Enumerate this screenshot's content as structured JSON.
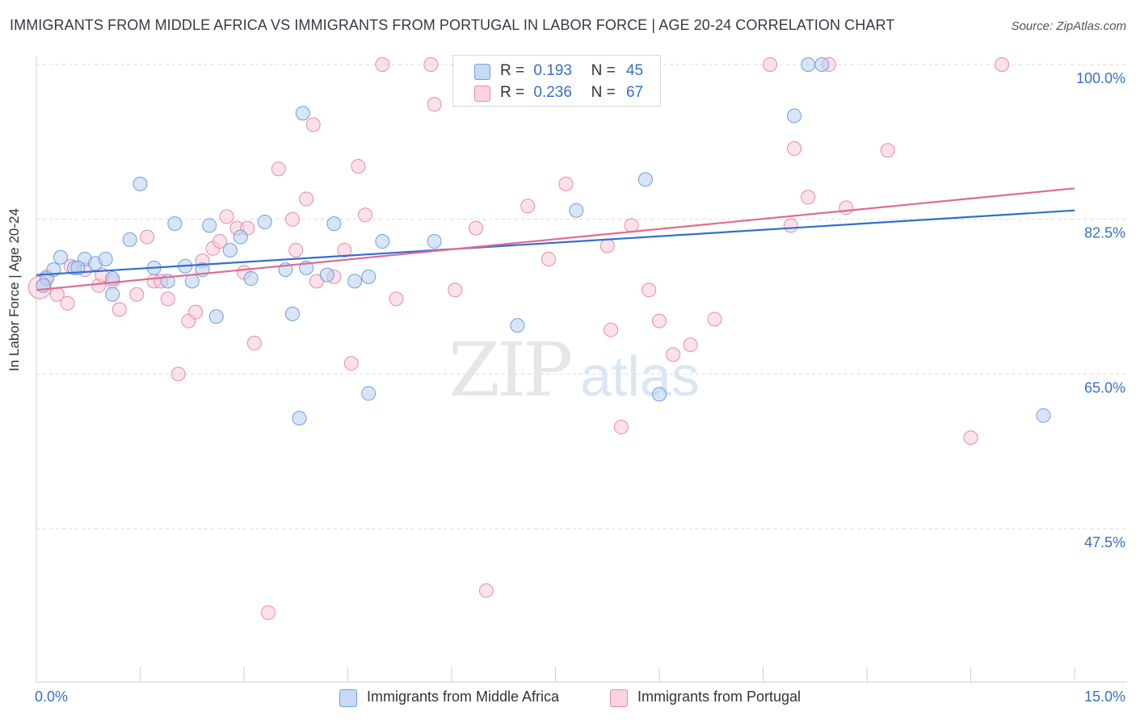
{
  "header": {
    "title": "IMMIGRANTS FROM MIDDLE AFRICA VS IMMIGRANTS FROM PORTUGAL IN LABOR FORCE | AGE 20-24 CORRELATION CHART",
    "source": "Source: ZipAtlas.com"
  },
  "legend": {
    "series1": {
      "r_label": "R =",
      "r_value": "0.193",
      "n_label": "N =",
      "n_value": "45"
    },
    "series2": {
      "r_label": "R =",
      "r_value": "0.236",
      "n_label": "N =",
      "n_value": "67"
    }
  },
  "colors": {
    "blue_fill": "#b8d0f0",
    "blue_stroke": "#6f9fdc",
    "blue_line": "#2f6fcf",
    "pink_fill": "#f8c8d8",
    "pink_stroke": "#e88aa8",
    "pink_line": "#e06a95",
    "axis_text": "#3a6fc4",
    "grid": "#d9d9d9"
  },
  "chart_data": {
    "type": "scatter",
    "title": "IMMIGRANTS FROM MIDDLE AFRICA VS IMMIGRANTS FROM PORTUGAL IN LABOR FORCE | AGE 20-24 CORRELATION CHART",
    "xlabel": "",
    "ylabel": "In Labor Force | Age 20-24",
    "xlim": [
      0,
      15
    ],
    "ylim": [
      32,
      102
    ],
    "x_tick_labels": [
      "0.0%",
      "15.0%"
    ],
    "y_ticks": [
      47.5,
      65.0,
      82.5,
      100.0
    ],
    "y_tick_labels": [
      "47.5%",
      "65.0%",
      "82.5%",
      "100.0%"
    ],
    "grid": true,
    "legend_position": "bottom",
    "watermark": {
      "zip": "ZIP",
      "atlas": "atlas"
    },
    "series": [
      {
        "name": "Immigrants from Middle Africa",
        "color": "#6f9fdc",
        "trend": {
          "x": [
            0,
            15
          ],
          "y": [
            76.2,
            83.5
          ]
        },
        "points": [
          [
            0.15,
            75.8
          ],
          [
            0.25,
            76.8
          ],
          [
            0.35,
            78.2
          ],
          [
            0.55,
            77.0
          ],
          [
            0.7,
            78.0
          ],
          [
            0.85,
            77.5
          ],
          [
            0.6,
            77.0
          ],
          [
            1.0,
            78.0
          ],
          [
            1.1,
            75.8
          ],
          [
            1.35,
            80.2
          ],
          [
            1.5,
            86.5
          ],
          [
            1.7,
            77.0
          ],
          [
            1.9,
            75.5
          ],
          [
            2.0,
            82.0
          ],
          [
            2.15,
            77.2
          ],
          [
            2.25,
            75.5
          ],
          [
            2.4,
            76.8
          ],
          [
            2.5,
            81.8
          ],
          [
            2.6,
            71.5
          ],
          [
            2.8,
            79.0
          ],
          [
            2.95,
            80.5
          ],
          [
            3.1,
            75.8
          ],
          [
            3.3,
            82.2
          ],
          [
            3.6,
            76.8
          ],
          [
            3.7,
            71.8
          ],
          [
            3.8,
            60.0
          ],
          [
            3.9,
            77.0
          ],
          [
            4.2,
            76.2
          ],
          [
            4.3,
            82.0
          ],
          [
            4.6,
            75.5
          ],
          [
            4.8,
            62.8
          ],
          [
            4.8,
            76.0
          ],
          [
            5.0,
            80.0
          ],
          [
            5.75,
            80.0
          ],
          [
            6.95,
            70.5
          ],
          [
            7.8,
            83.5
          ],
          [
            8.8,
            87.0
          ],
          [
            9.0,
            62.7
          ],
          [
            10.95,
            94.2
          ],
          [
            11.15,
            100.0
          ],
          [
            11.35,
            100.0
          ],
          [
            14.55,
            60.3
          ],
          [
            1.1,
            74.0
          ],
          [
            3.85,
            94.5
          ],
          [
            0.1,
            75.0
          ]
        ]
      },
      {
        "name": "Immigrants from Portugal",
        "color": "#e88aa8",
        "trend": {
          "x": [
            0,
            15
          ],
          "y": [
            74.5,
            86.0
          ]
        },
        "points": [
          [
            0.1,
            75.0
          ],
          [
            0.3,
            74.0
          ],
          [
            0.45,
            73.0
          ],
          [
            0.7,
            76.8
          ],
          [
            0.9,
            75.0
          ],
          [
            1.1,
            75.5
          ],
          [
            1.2,
            72.3
          ],
          [
            1.45,
            74.0
          ],
          [
            1.6,
            80.5
          ],
          [
            1.7,
            75.5
          ],
          [
            1.8,
            75.5
          ],
          [
            1.9,
            73.5
          ],
          [
            2.05,
            65.0
          ],
          [
            2.2,
            71.0
          ],
          [
            2.3,
            72.0
          ],
          [
            2.4,
            77.8
          ],
          [
            2.55,
            79.2
          ],
          [
            2.75,
            82.8
          ],
          [
            2.9,
            81.5
          ],
          [
            3.0,
            76.5
          ],
          [
            3.15,
            68.5
          ],
          [
            3.35,
            38.0
          ],
          [
            3.5,
            88.2
          ],
          [
            3.7,
            82.5
          ],
          [
            3.75,
            79.0
          ],
          [
            3.9,
            84.8
          ],
          [
            4.0,
            93.2
          ],
          [
            4.05,
            75.5
          ],
          [
            4.3,
            76.0
          ],
          [
            4.45,
            79.0
          ],
          [
            4.55,
            66.2
          ],
          [
            4.65,
            88.5
          ],
          [
            4.75,
            83.0
          ],
          [
            5.0,
            100.0
          ],
          [
            5.2,
            73.5
          ],
          [
            5.7,
            100.0
          ],
          [
            5.75,
            95.5
          ],
          [
            6.05,
            74.5
          ],
          [
            6.35,
            81.5
          ],
          [
            6.5,
            40.5
          ],
          [
            6.85,
            100.0
          ],
          [
            7.1,
            84.0
          ],
          [
            7.4,
            78.0
          ],
          [
            7.65,
            86.5
          ],
          [
            8.25,
            79.5
          ],
          [
            8.3,
            70.0
          ],
          [
            8.45,
            59.0
          ],
          [
            8.6,
            81.8
          ],
          [
            8.85,
            74.5
          ],
          [
            9.0,
            71.0
          ],
          [
            9.2,
            67.2
          ],
          [
            9.45,
            68.3
          ],
          [
            9.8,
            71.2
          ],
          [
            10.6,
            100.0
          ],
          [
            10.9,
            81.8
          ],
          [
            10.95,
            90.5
          ],
          [
            11.15,
            85.0
          ],
          [
            11.45,
            100.0
          ],
          [
            11.7,
            83.8
          ],
          [
            12.3,
            90.3
          ],
          [
            13.5,
            57.8
          ],
          [
            13.95,
            100.0
          ],
          [
            0.15,
            76.0
          ],
          [
            0.5,
            77.2
          ],
          [
            0.95,
            76.2
          ],
          [
            3.05,
            81.5
          ],
          [
            2.65,
            80.0
          ]
        ]
      }
    ]
  },
  "bottom_legend": {
    "item1": "Immigrants from Middle Africa",
    "item2": "Immigrants from Portugal"
  }
}
